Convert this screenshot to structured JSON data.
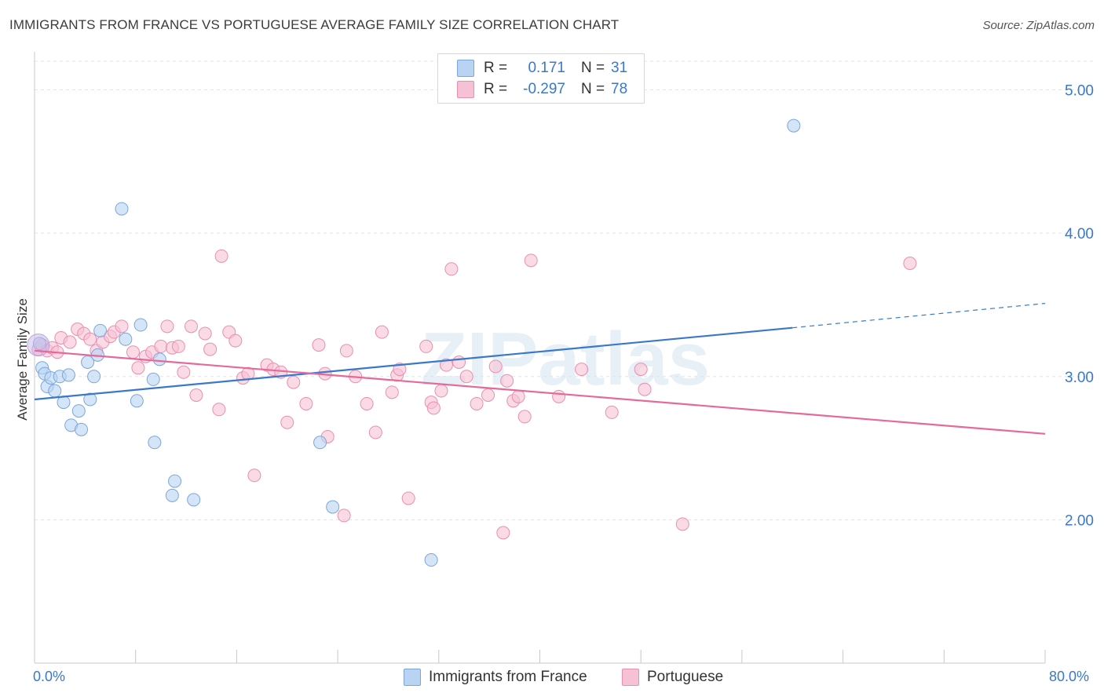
{
  "title": "IMMIGRANTS FROM FRANCE VS PORTUGUESE AVERAGE FAMILY SIZE CORRELATION CHART",
  "source": "Source: ZipAtlas.com",
  "watermark": "ZIPatlas",
  "colors": {
    "blue": "#3a78c9",
    "blue_fill": "#b9d3f3",
    "pink": "#e56a98",
    "pink_fill": "#f6c1d4",
    "grid": "#e3e3e3",
    "axis_text": "#3a78c9"
  },
  "legend": {
    "rows": [
      {
        "r_label": "R =",
        "r_value": "0.171",
        "n_label": "N =",
        "n_value": "31",
        "color": "blue"
      },
      {
        "r_label": "R =",
        "r_value": "-0.297",
        "n_label": "N =",
        "n_value": "78",
        "color": "pink"
      }
    ]
  },
  "bottom_legend": [
    "Immigrants from France",
    "Portuguese"
  ],
  "x_axis": {
    "min_label": "0.0%",
    "max_label": "80.0%"
  },
  "chart_data": {
    "type": "scatter",
    "title": "IMMIGRANTS FROM FRANCE VS PORTUGUESE AVERAGE FAMILY SIZE CORRELATION CHART",
    "xlabel": "",
    "ylabel": "Average Family Size",
    "xlim": [
      0,
      80
    ],
    "ylim": [
      1.0,
      5.2
    ],
    "y_ticks": [
      2.0,
      3.0,
      4.0,
      5.0
    ],
    "y_tick_labels": [
      "2.00",
      "3.00",
      "4.00",
      "5.00"
    ],
    "grid": true,
    "legend_placement": "top-center",
    "series": [
      {
        "name": "Immigrants from France",
        "color": "blue",
        "trend": {
          "x0": 0,
          "y0": 2.84,
          "x1": 60,
          "y1": 3.34,
          "dashed_to_x": 80,
          "dashed_to_y": 3.51
        },
        "points": [
          [
            0.4,
            3.23
          ],
          [
            0.6,
            3.06
          ],
          [
            0.8,
            3.02
          ],
          [
            1.0,
            2.93
          ],
          [
            1.3,
            2.99
          ],
          [
            1.6,
            2.9
          ],
          [
            2.0,
            3.0
          ],
          [
            2.3,
            2.82
          ],
          [
            2.7,
            3.01
          ],
          [
            2.9,
            2.66
          ],
          [
            3.5,
            2.76
          ],
          [
            3.7,
            2.63
          ],
          [
            4.2,
            3.1
          ],
          [
            4.4,
            2.84
          ],
          [
            4.7,
            3.0
          ],
          [
            5.0,
            3.15
          ],
          [
            5.2,
            3.32
          ],
          [
            6.9,
            4.17
          ],
          [
            7.2,
            3.26
          ],
          [
            8.1,
            2.83
          ],
          [
            8.4,
            3.36
          ],
          [
            9.4,
            2.98
          ],
          [
            9.5,
            2.54
          ],
          [
            9.9,
            3.12
          ],
          [
            10.9,
            2.17
          ],
          [
            11.1,
            2.27
          ],
          [
            12.6,
            2.14
          ],
          [
            22.6,
            2.54
          ],
          [
            23.6,
            2.09
          ],
          [
            31.4,
            1.72
          ],
          [
            60.1,
            4.75
          ]
        ]
      },
      {
        "name": "Portuguese",
        "color": "pink",
        "trend": {
          "x0": 0,
          "y0": 3.18,
          "x1": 80,
          "y1": 2.6
        },
        "points": [
          [
            0.3,
            3.19
          ],
          [
            0.6,
            3.22
          ],
          [
            1.0,
            3.18
          ],
          [
            1.4,
            3.2
          ],
          [
            1.8,
            3.17
          ],
          [
            2.1,
            3.27
          ],
          [
            2.8,
            3.24
          ],
          [
            3.4,
            3.33
          ],
          [
            3.9,
            3.3
          ],
          [
            4.4,
            3.26
          ],
          [
            4.9,
            3.18
          ],
          [
            5.4,
            3.24
          ],
          [
            6.0,
            3.28
          ],
          [
            6.3,
            3.31
          ],
          [
            6.9,
            3.35
          ],
          [
            7.8,
            3.17
          ],
          [
            8.2,
            3.06
          ],
          [
            8.8,
            3.14
          ],
          [
            9.3,
            3.17
          ],
          [
            10.0,
            3.21
          ],
          [
            10.5,
            3.35
          ],
          [
            10.9,
            3.2
          ],
          [
            11.4,
            3.21
          ],
          [
            11.8,
            3.03
          ],
          [
            12.4,
            3.35
          ],
          [
            12.8,
            2.87
          ],
          [
            13.5,
            3.3
          ],
          [
            13.9,
            3.19
          ],
          [
            14.6,
            2.77
          ],
          [
            14.8,
            3.84
          ],
          [
            15.4,
            3.31
          ],
          [
            15.9,
            3.25
          ],
          [
            16.5,
            2.99
          ],
          [
            16.9,
            3.02
          ],
          [
            17.4,
            2.31
          ],
          [
            18.4,
            3.08
          ],
          [
            18.9,
            3.05
          ],
          [
            19.5,
            3.03
          ],
          [
            20.0,
            2.68
          ],
          [
            20.5,
            2.96
          ],
          [
            21.5,
            2.81
          ],
          [
            22.5,
            3.22
          ],
          [
            23.0,
            3.02
          ],
          [
            23.2,
            2.58
          ],
          [
            24.5,
            2.03
          ],
          [
            24.7,
            3.18
          ],
          [
            25.4,
            3.0
          ],
          [
            26.3,
            2.81
          ],
          [
            27.0,
            2.61
          ],
          [
            27.5,
            3.31
          ],
          [
            28.3,
            2.89
          ],
          [
            28.7,
            3.01
          ],
          [
            28.9,
            3.05
          ],
          [
            29.6,
            2.15
          ],
          [
            31.0,
            3.21
          ],
          [
            31.4,
            2.82
          ],
          [
            31.6,
            2.78
          ],
          [
            32.2,
            2.9
          ],
          [
            32.6,
            3.08
          ],
          [
            33.0,
            3.75
          ],
          [
            33.6,
            3.1
          ],
          [
            34.2,
            3.0
          ],
          [
            35.0,
            2.81
          ],
          [
            35.9,
            2.87
          ],
          [
            36.5,
            3.07
          ],
          [
            37.1,
            1.91
          ],
          [
            37.4,
            2.97
          ],
          [
            37.9,
            2.83
          ],
          [
            38.3,
            2.86
          ],
          [
            38.8,
            2.72
          ],
          [
            39.3,
            3.81
          ],
          [
            41.5,
            2.86
          ],
          [
            43.3,
            3.05
          ],
          [
            45.7,
            2.75
          ],
          [
            48.0,
            3.05
          ],
          [
            48.3,
            2.91
          ],
          [
            51.3,
            1.97
          ],
          [
            69.3,
            3.79
          ]
        ]
      }
    ]
  }
}
